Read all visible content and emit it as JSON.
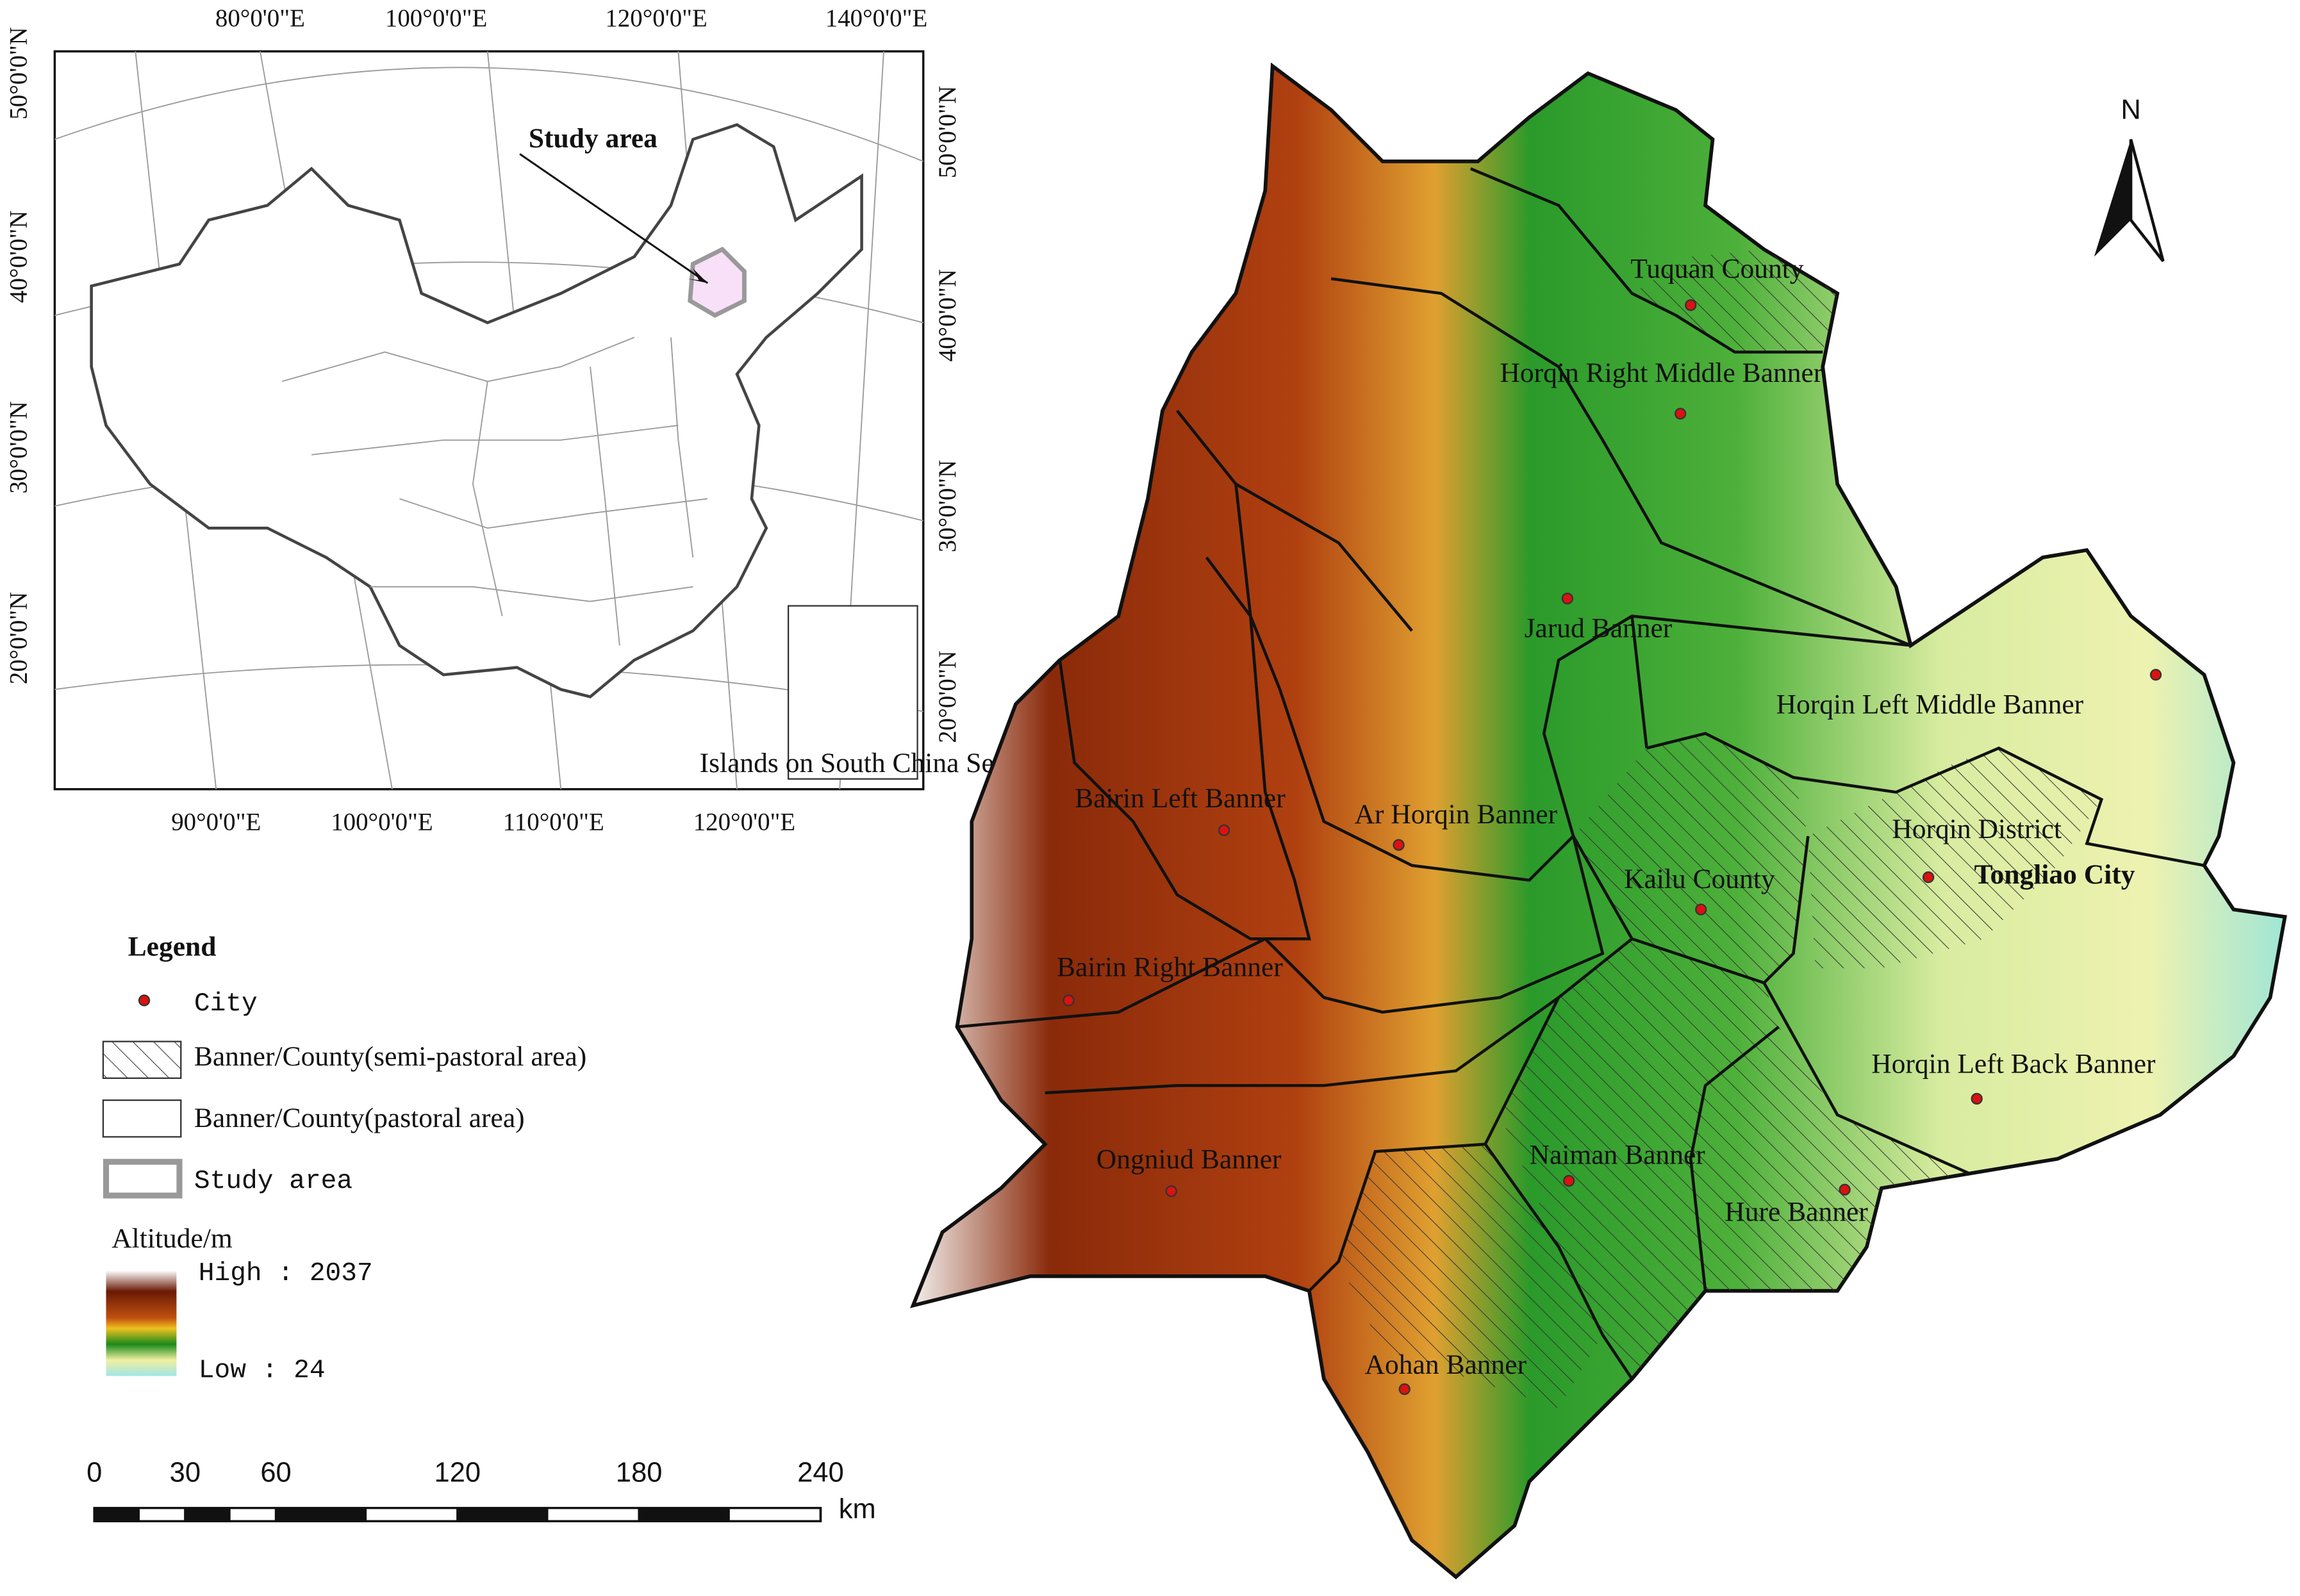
{
  "inset": {
    "top_ticks": [
      "80°0'0\"E",
      "100°0'0\"E",
      "120°0'0\"E",
      "140°0'0\"E"
    ],
    "bottom_ticks": [
      "90°0'0\"E",
      "100°0'0\"E",
      "110°0'0\"E",
      "120°0'0\"E"
    ],
    "left_ticks": [
      "50°0'0\"N",
      "40°0'0\"N",
      "30°0'0\"N",
      "20°0'0\"N"
    ],
    "right_ticks": [
      "50°0'0\"N",
      "40°0'0\"N",
      "30°0'0\"N",
      "20°0'0\"N"
    ],
    "study_area_label": "Study area",
    "box_caption": "Islands on South China Sea"
  },
  "places": [
    "Tuquan County",
    "Horqin Right Middle Banner",
    "Jarud Banner",
    "Horqin Left Middle Banner",
    "Bairin Left Banner",
    "Ar Horqin Banner",
    "Horqin District",
    "Tongliao City",
    "Kailu County",
    "Bairin Right Banner",
    "Horqin Left Back Banner",
    "Ongniud Banner",
    "Naiman Banner",
    "Hure Banner",
    "Aohan Banner"
  ],
  "legend": {
    "title": "Legend",
    "items": [
      "City",
      "Banner/County(semi-pastoral area)",
      "Banner/County(pastoral area)",
      "Study area"
    ],
    "altitude_title": "Altitude/m",
    "high": "High : 2037",
    "low": "Low : 24"
  },
  "scale_bar": {
    "ticks": [
      0,
      30,
      60,
      120,
      180,
      240
    ],
    "unit": "km"
  },
  "north": "N"
}
